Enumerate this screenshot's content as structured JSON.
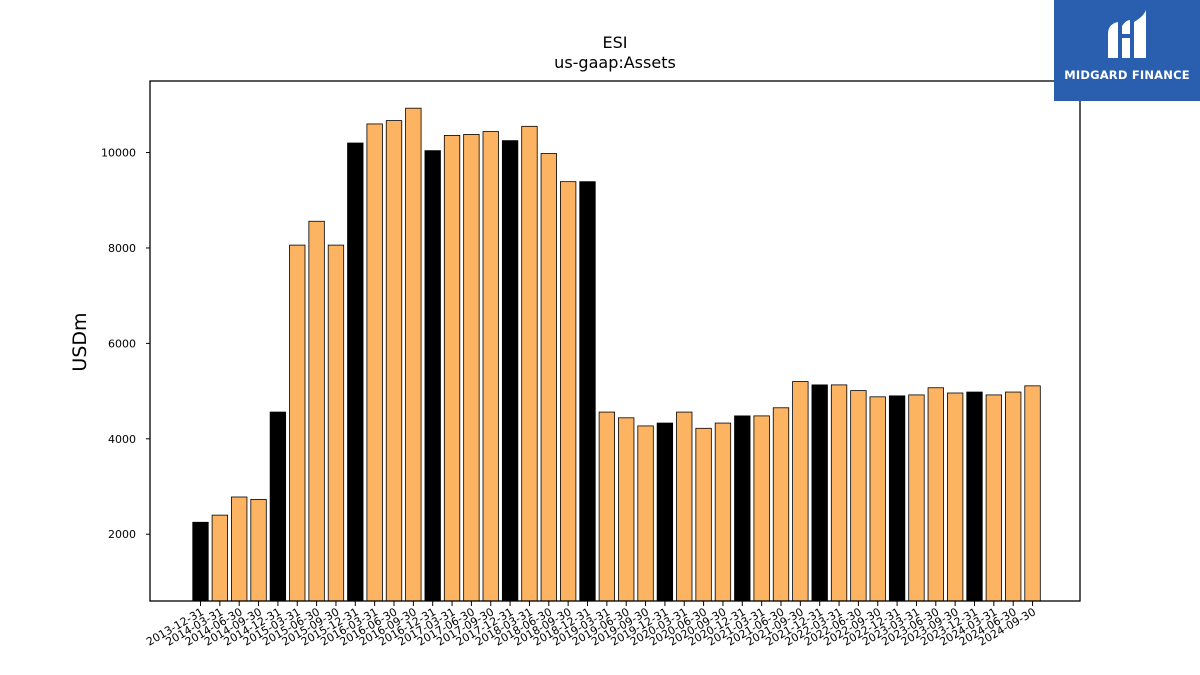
{
  "brand": {
    "name": "MIDGARD FINANCE",
    "logo_icon": "midgard-logo-icon",
    "background": "#2a5fb0"
  },
  "colors": {
    "bar_default": "#fdb462",
    "bar_year_end": "#000000",
    "edge": "#000000"
  },
  "chart_data": {
    "type": "bar",
    "title": "ESI",
    "subtitle": "us-gaap:Assets",
    "xlabel": "",
    "ylabel": "USDm",
    "ylim": [
      600,
      11500
    ],
    "yticks": [
      2000,
      4000,
      6000,
      8000,
      10000
    ],
    "grid": false,
    "categories": [
      "2013-12-31",
      "2014-03-31",
      "2014-06-30",
      "2014-09-30",
      "2014-12-31",
      "2015-03-31",
      "2015-06-30",
      "2015-09-30",
      "2015-12-31",
      "2016-03-31",
      "2016-06-30",
      "2016-09-30",
      "2016-12-31",
      "2017-03-31",
      "2017-06-30",
      "2017-09-30",
      "2017-12-31",
      "2018-03-31",
      "2018-06-30",
      "2018-09-30",
      "2018-12-31",
      "2019-03-31",
      "2019-06-30",
      "2019-09-30",
      "2019-12-31",
      "2020-03-31",
      "2020-06-30",
      "2020-09-30",
      "2020-12-31",
      "2021-03-31",
      "2021-06-30",
      "2021-09-30",
      "2021-12-31",
      "2022-03-31",
      "2022-06-30",
      "2022-09-30",
      "2022-12-31",
      "2023-03-31",
      "2023-06-30",
      "2023-09-30",
      "2023-12-31",
      "2024-03-31",
      "2024-06-30",
      "2024-09-30"
    ],
    "values": [
      2250,
      2400,
      2780,
      2730,
      4560,
      8060,
      8560,
      8060,
      10200,
      10600,
      10670,
      10930,
      10040,
      10360,
      10380,
      10440,
      10250,
      10550,
      9980,
      9390,
      9390,
      4560,
      4440,
      4270,
      4330,
      4560,
      4220,
      4330,
      4480,
      4480,
      4650,
      5200,
      5130,
      5130,
      5010,
      4880,
      4900,
      4920,
      5070,
      4960,
      4980,
      4920,
      4980,
      5110
    ],
    "year_end_highlight": true
  }
}
